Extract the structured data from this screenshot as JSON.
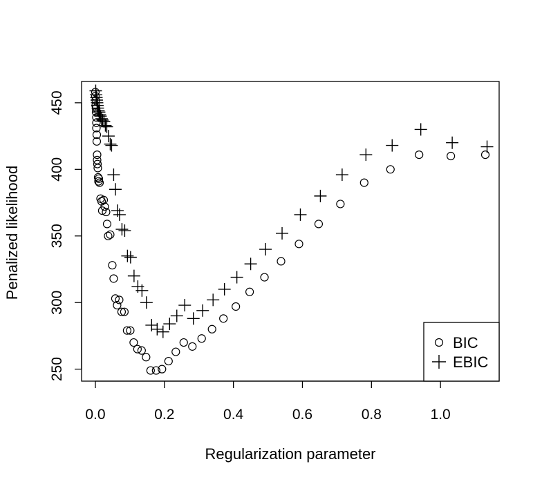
{
  "chart_data": {
    "type": "scatter",
    "title": "",
    "xlabel": "Regularization parameter",
    "ylabel": "Penalized likelihood",
    "xlim": [
      -0.04,
      1.17
    ],
    "ylim": [
      241,
      466
    ],
    "x_ticks": [
      0.0,
      0.2,
      0.4,
      0.6,
      0.8,
      1.0
    ],
    "x_tick_labels": [
      "0.0",
      "0.2",
      "0.4",
      "0.6",
      "0.8",
      "1.0"
    ],
    "y_ticks": [
      250,
      300,
      350,
      400,
      450
    ],
    "y_tick_labels": [
      "250",
      "300",
      "350",
      "400",
      "450"
    ],
    "grid": false,
    "legend_position": "bottom-right",
    "series": [
      {
        "name": "BIC",
        "marker": "open-circle",
        "points": [
          [
            0.0,
            458
          ],
          [
            0.0,
            455
          ],
          [
            0.001,
            452
          ],
          [
            0.001,
            448
          ],
          [
            0.002,
            446
          ],
          [
            0.002,
            443
          ],
          [
            0.003,
            439
          ],
          [
            0.003,
            435
          ],
          [
            0.003,
            431
          ],
          [
            0.004,
            426
          ],
          [
            0.004,
            421
          ],
          [
            0.005,
            411
          ],
          [
            0.005,
            407
          ],
          [
            0.006,
            404
          ],
          [
            0.007,
            401
          ],
          [
            0.008,
            394
          ],
          [
            0.009,
            391
          ],
          [
            0.01,
            393
          ],
          [
            0.012,
            390
          ],
          [
            0.015,
            378
          ],
          [
            0.018,
            376
          ],
          [
            0.02,
            369
          ],
          [
            0.024,
            377
          ],
          [
            0.027,
            372
          ],
          [
            0.031,
            368
          ],
          [
            0.034,
            359
          ],
          [
            0.037,
            350
          ],
          [
            0.043,
            351
          ],
          [
            0.049,
            328
          ],
          [
            0.053,
            318
          ],
          [
            0.058,
            303
          ],
          [
            0.063,
            298
          ],
          [
            0.069,
            302
          ],
          [
            0.076,
            293
          ],
          [
            0.084,
            293
          ],
          [
            0.092,
            279
          ],
          [
            0.101,
            279
          ],
          [
            0.111,
            270
          ],
          [
            0.122,
            265
          ],
          [
            0.134,
            264
          ],
          [
            0.147,
            259
          ],
          [
            0.16,
            249
          ],
          [
            0.176,
            249
          ],
          [
            0.193,
            250
          ],
          [
            0.212,
            256
          ],
          [
            0.233,
            263
          ],
          [
            0.256,
            270
          ],
          [
            0.281,
            267
          ],
          [
            0.308,
            273
          ],
          [
            0.338,
            280
          ],
          [
            0.371,
            288
          ],
          [
            0.407,
            297
          ],
          [
            0.447,
            308
          ],
          [
            0.49,
            319
          ],
          [
            0.538,
            331
          ],
          [
            0.59,
            344
          ],
          [
            0.647,
            359
          ],
          [
            0.71,
            374
          ],
          [
            0.779,
            390
          ],
          [
            0.855,
            400
          ],
          [
            0.938,
            411
          ],
          [
            1.03,
            410
          ],
          [
            1.13,
            411
          ]
        ]
      },
      {
        "name": "EBIC",
        "marker": "plus",
        "points": [
          [
            0.001,
            459
          ],
          [
            0.002,
            456
          ],
          [
            0.003,
            454
          ],
          [
            0.004,
            452
          ],
          [
            0.005,
            450
          ],
          [
            0.006,
            448
          ],
          [
            0.007,
            446
          ],
          [
            0.009,
            444
          ],
          [
            0.011,
            443
          ],
          [
            0.013,
            441
          ],
          [
            0.015,
            440
          ],
          [
            0.018,
            438
          ],
          [
            0.021,
            437
          ],
          [
            0.025,
            436
          ],
          [
            0.029,
            433
          ],
          [
            0.033,
            432
          ],
          [
            0.038,
            425
          ],
          [
            0.043,
            419
          ],
          [
            0.047,
            418
          ],
          [
            0.053,
            396
          ],
          [
            0.058,
            385
          ],
          [
            0.064,
            369
          ],
          [
            0.07,
            366
          ],
          [
            0.077,
            355
          ],
          [
            0.085,
            354
          ],
          [
            0.093,
            335
          ],
          [
            0.102,
            334
          ],
          [
            0.112,
            320
          ],
          [
            0.123,
            312
          ],
          [
            0.135,
            309
          ],
          [
            0.148,
            300
          ],
          [
            0.163,
            283
          ],
          [
            0.179,
            280
          ],
          [
            0.196,
            278
          ],
          [
            0.215,
            284
          ],
          [
            0.236,
            290
          ],
          [
            0.259,
            298
          ],
          [
            0.284,
            288
          ],
          [
            0.311,
            294
          ],
          [
            0.341,
            302
          ],
          [
            0.374,
            310
          ],
          [
            0.41,
            319
          ],
          [
            0.45,
            329
          ],
          [
            0.493,
            340
          ],
          [
            0.541,
            352
          ],
          [
            0.594,
            366
          ],
          [
            0.652,
            380
          ],
          [
            0.715,
            396
          ],
          [
            0.784,
            411
          ],
          [
            0.86,
            418
          ],
          [
            0.943,
            430
          ],
          [
            1.034,
            420
          ],
          [
            1.135,
            417
          ]
        ]
      }
    ]
  }
}
